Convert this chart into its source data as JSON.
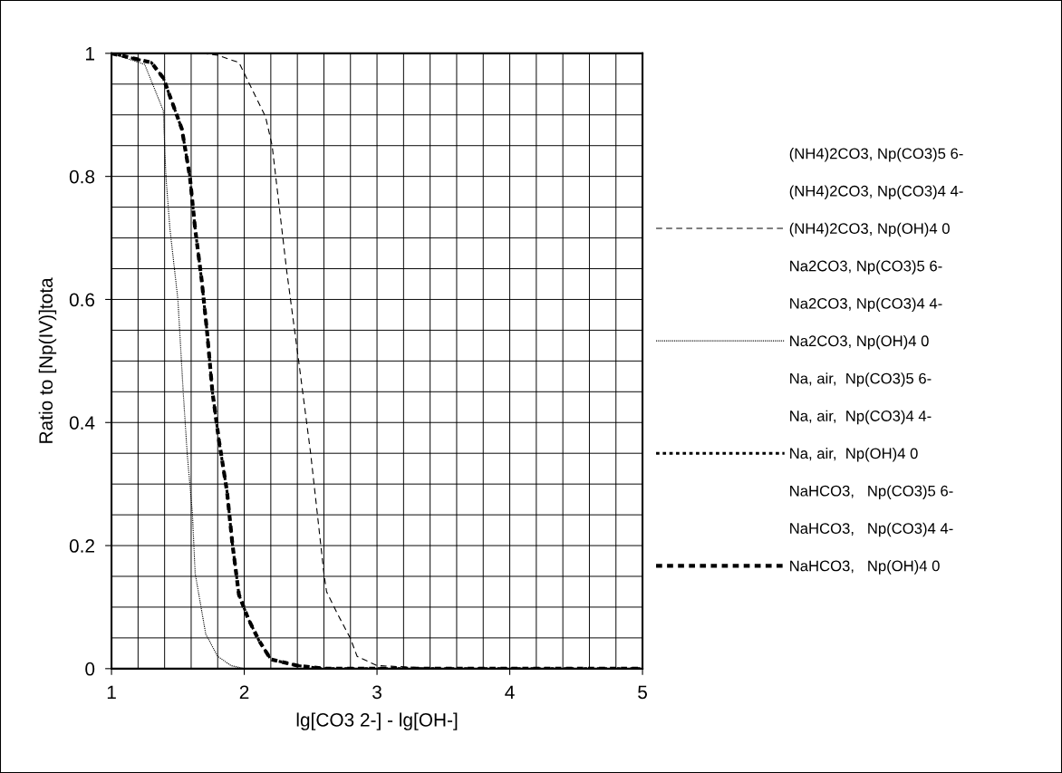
{
  "chart_data": {
    "type": "line",
    "xlabel": "lg[CO3 2-] - lg[OH-]",
    "ylabel": "Ratio to [Np(IV)]tota",
    "xlim": [
      1,
      5
    ],
    "xticks": [
      1,
      2,
      3,
      4,
      5
    ],
    "ylim": [
      0,
      1
    ],
    "yticks": [
      0,
      0.2,
      0.4,
      0.6,
      0.8,
      1
    ],
    "grid": true,
    "legend": "right",
    "series": [
      {
        "name": "(NH4)2CO3, Np(CO3)5 6-"
      },
      {
        "name": "(NH4)2CO3, Np(CO3)4 4-"
      },
      {
        "name": "(NH4)2CO3, Np(OH)4 0",
        "color": "#000000",
        "line_style": "dashed",
        "x": [
          1,
          1.68,
          1.8,
          1.96,
          2.16,
          2.21,
          2.32,
          2.41,
          2.5,
          2.6,
          2.62,
          2.7,
          2.8,
          2.85,
          3.0,
          3.5,
          5
        ],
        "values": [
          1,
          1,
          0.997,
          0.985,
          0.897,
          0.85,
          0.646,
          0.5,
          0.35,
          0.155,
          0.125,
          0.09,
          0.049,
          0.02,
          0.005,
          0,
          0
        ]
      },
      {
        "name": "Na2CO3, Np(CO3)5 6-"
      },
      {
        "name": "Na2CO3, Np(CO3)4 4-"
      },
      {
        "name": "Na2CO3, Np(OH)4 0",
        "color": "#000000",
        "line_style": "dotted",
        "x": [
          1,
          1.25,
          1.39,
          1.41,
          1.44,
          1.5,
          1.54,
          1.57,
          1.61,
          1.63,
          1.71,
          1.8,
          1.9,
          2.0,
          5
        ],
        "values": [
          1,
          0.982,
          0.907,
          0.8,
          0.715,
          0.6,
          0.45,
          0.35,
          0.25,
          0.155,
          0.056,
          0.02,
          0.005,
          0,
          0
        ]
      },
      {
        "name": "Na, air,  Np(CO3)5 6-"
      },
      {
        "name": "Na, air,  Np(CO3)4 4-"
      },
      {
        "name": "Na, air,  Np(OH)4 0",
        "color": "#000000",
        "line_style": "dotted",
        "x": [
          1,
          1.2,
          1.3,
          1.39,
          1.53,
          1.59,
          1.63,
          1.68,
          1.72,
          1.76,
          1.81,
          1.87,
          1.91,
          1.96,
          2.03,
          2.11,
          2.2,
          2.4,
          2.6,
          5
        ],
        "values": [
          1,
          0.99,
          0.985,
          0.96,
          0.877,
          0.8,
          0.715,
          0.63,
          0.547,
          0.45,
          0.37,
          0.288,
          0.204,
          0.12,
          0.081,
          0.046,
          0.015,
          0.005,
          0,
          0
        ]
      },
      {
        "name": "NaHCO3,   Np(CO3)5 6-"
      },
      {
        "name": "NaHCO3,   Np(CO3)4 4-"
      },
      {
        "name": "NaHCO3,   Np(OH)4 0",
        "color": "#000000",
        "line_style": "dashed",
        "x": [
          1,
          1.2,
          1.3,
          1.39,
          1.53,
          1.59,
          1.63,
          1.68,
          1.72,
          1.76,
          1.81,
          1.87,
          1.91,
          1.96,
          2.03,
          2.11,
          2.2,
          2.4,
          2.6,
          5
        ],
        "values": [
          1,
          0.99,
          0.985,
          0.96,
          0.877,
          0.8,
          0.715,
          0.63,
          0.547,
          0.45,
          0.37,
          0.288,
          0.204,
          0.12,
          0.081,
          0.046,
          0.015,
          0.005,
          0,
          0
        ]
      }
    ]
  }
}
